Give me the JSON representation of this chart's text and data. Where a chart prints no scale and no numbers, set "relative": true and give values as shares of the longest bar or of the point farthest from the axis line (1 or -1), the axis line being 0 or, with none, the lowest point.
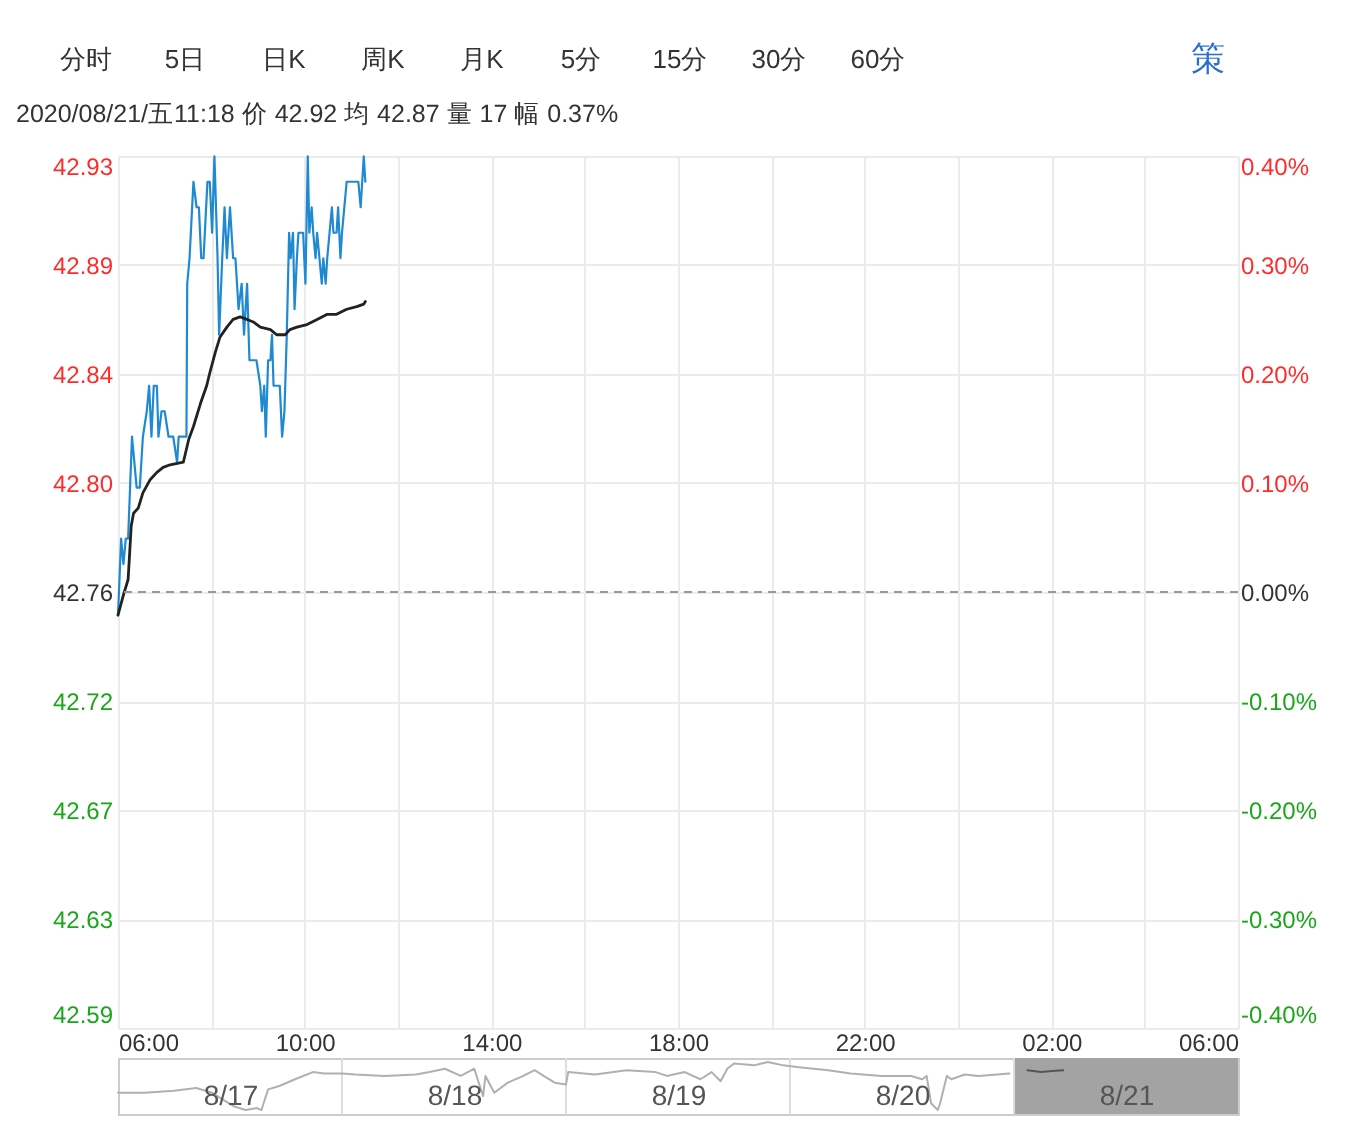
{
  "chart_data": [
    {
      "type": "line",
      "title": "2020/08/21/五11:18 价 42.92 均 42.87 量 17 幅 0.37%",
      "annotations": [
        "分时",
        "5日",
        "日K",
        "周K",
        "月K",
        "5分",
        "15分",
        "30分",
        "60分",
        "策"
      ],
      "xlim": [
        "2020-08-21T06:00",
        "2020-08-22T06:00"
      ],
      "xticks": [
        {
          "value": "2020-08-21T06:00",
          "label": "06:00"
        },
        {
          "value": "2020-08-21T08:00",
          "label": null
        },
        {
          "value": "2020-08-21T10:00",
          "label": "10:00"
        },
        {
          "value": "2020-08-21T12:00",
          "label": null
        },
        {
          "value": "2020-08-21T14:00",
          "label": "14:00"
        },
        {
          "value": "2020-08-21T16:00",
          "label": null
        },
        {
          "value": "2020-08-21T18:00",
          "label": "18:00"
        },
        {
          "value": "2020-08-21T20:00",
          "label": null
        },
        {
          "value": "2020-08-21T22:00",
          "label": "22:00"
        },
        {
          "value": "2020-08-22T00:00",
          "label": null
        },
        {
          "value": "2020-08-22T02:00",
          "label": "02:00"
        },
        {
          "value": "2020-08-22T04:00",
          "label": null
        },
        {
          "value": "2020-08-22T06:00",
          "label": "06:00"
        }
      ],
      "ylim": [
        42.5881,
        42.9301
      ],
      "yticks": [
        {
          "value": 42.9301,
          "label": "42.93"
        },
        {
          "value": 42.8874,
          "label": "42.89"
        },
        {
          "value": 42.8446,
          "label": "42.84"
        },
        {
          "value": 42.8019,
          "label": "42.80"
        },
        {
          "value": 42.7591,
          "label": "42.76"
        },
        {
          "value": 42.7163,
          "label": "42.72"
        },
        {
          "value": 42.6736,
          "label": "42.67"
        },
        {
          "value": 42.6308,
          "label": "42.63"
        },
        {
          "value": 42.5881,
          "label": "42.59"
        }
      ],
      "y2lim": [
        -0.4,
        0.4
      ],
      "y2ticks": [
        {
          "value": 0.4,
          "label": "0.40%"
        },
        {
          "value": 0.3,
          "label": "0.30%"
        },
        {
          "value": 0.2,
          "label": "0.20%"
        },
        {
          "value": 0.1,
          "label": "0.10%"
        },
        {
          "value": 0,
          "label": "0.00%"
        },
        {
          "value": -0.1,
          "label": "-0.10%"
        },
        {
          "value": -0.2,
          "label": "-0.20%"
        },
        {
          "value": -0.3,
          "label": "-0.30%"
        },
        {
          "value": -0.4,
          "label": "-0.40%"
        }
      ],
      "grid": true,
      "ref_lines": [
        {
          "axis": "y2",
          "value": 0,
          "color": "#999999",
          "line_style": "dashed"
        }
      ],
      "series": [
        {
          "color": "#1f8ad2",
          "x": [
            "2020-08-21T06:00",
            "2020-08-21T06:04",
            "2020-08-21T06:07",
            "2020-08-21T06:10",
            "2020-08-21T06:13",
            "2020-08-21T06:18",
            "2020-08-21T06:24",
            "2020-08-21T06:28",
            "2020-08-21T06:32",
            "2020-08-21T06:37",
            "2020-08-21T06:40",
            "2020-08-21T06:43",
            "2020-08-21T06:46",
            "2020-08-21T06:50",
            "2020-08-21T06:52",
            "2020-08-21T06:56",
            "2020-08-21T07:00",
            "2020-08-21T07:05",
            "2020-08-21T07:11",
            "2020-08-21T07:16",
            "2020-08-21T07:18",
            "2020-08-21T07:28",
            "2020-08-21T07:29",
            "2020-08-21T07:32",
            "2020-08-21T07:37",
            "2020-08-21T07:41",
            "2020-08-21T07:44",
            "2020-08-21T07:47",
            "2020-08-21T07:50",
            "2020-08-21T07:55",
            "2020-08-21T07:58",
            "2020-08-21T08:01",
            "2020-08-21T08:04",
            "2020-08-21T08:08",
            "2020-08-21T08:10",
            "2020-08-21T08:14",
            "2020-08-21T08:17",
            "2020-08-21T08:20",
            "2020-08-21T08:24",
            "2020-08-21T08:28",
            "2020-08-21T08:31",
            "2020-08-21T08:35",
            "2020-08-21T08:39",
            "2020-08-21T08:42",
            "2020-08-21T08:46",
            "2020-08-21T08:49",
            "2020-08-21T08:54",
            "2020-08-21T08:58",
            "2020-08-21T09:03",
            "2020-08-21T09:05",
            "2020-08-21T09:08",
            "2020-08-21T09:10",
            "2020-08-21T09:13",
            "2020-08-21T09:16",
            "2020-08-21T09:18",
            "2020-08-21T09:20",
            "2020-08-21T09:28",
            "2020-08-21T09:31",
            "2020-08-21T09:34",
            "2020-08-21T09:37",
            "2020-08-21T09:40",
            "2020-08-21T09:42",
            "2020-08-21T09:45",
            "2020-08-21T09:47",
            "2020-08-21T09:50",
            "2020-08-21T09:52",
            "2020-08-21T09:56",
            "2020-08-21T09:58",
            "2020-08-21T10:01",
            "2020-08-21T10:04",
            "2020-08-21T10:06",
            "2020-08-21T10:09",
            "2020-08-21T10:11",
            "2020-08-21T10:14",
            "2020-08-21T10:16",
            "2020-08-21T10:19",
            "2020-08-21T10:22",
            "2020-08-21T10:24",
            "2020-08-21T10:27",
            "2020-08-21T10:29",
            "2020-08-21T10:32",
            "2020-08-21T10:35",
            "2020-08-21T10:37",
            "2020-08-21T10:41",
            "2020-08-21T10:43",
            "2020-08-21T10:46",
            "2020-08-21T10:48",
            "2020-08-21T10:51",
            "2020-08-21T10:54",
            "2020-08-21T11:09",
            "2020-08-21T11:12",
            "2020-08-21T11:16",
            "2020-08-21T11:18"
          ],
          "values": [
            42.75,
            42.78,
            42.77,
            42.78,
            42.78,
            42.82,
            42.8,
            42.8,
            42.82,
            42.83,
            42.84,
            42.82,
            42.84,
            42.84,
            42.82,
            42.83,
            42.83,
            42.82,
            42.82,
            42.81,
            42.82,
            42.82,
            42.88,
            42.89,
            42.92,
            42.91,
            42.91,
            42.89,
            42.89,
            42.92,
            42.92,
            42.9,
            42.93,
            42.89,
            42.86,
            42.89,
            42.91,
            42.89,
            42.91,
            42.89,
            42.89,
            42.87,
            42.88,
            42.86,
            42.88,
            42.85,
            42.85,
            42.85,
            42.84,
            42.83,
            42.84,
            42.82,
            42.85,
            42.85,
            42.86,
            42.84,
            42.84,
            42.82,
            42.83,
            42.86,
            42.9,
            42.89,
            42.9,
            42.87,
            42.89,
            42.9,
            42.9,
            42.9,
            42.88,
            42.93,
            42.9,
            42.91,
            42.9,
            42.89,
            42.9,
            42.89,
            42.88,
            42.89,
            42.88,
            42.89,
            42.9,
            42.91,
            42.9,
            42.9,
            42.91,
            42.89,
            42.9,
            42.91,
            42.92,
            42.92,
            42.91,
            42.93,
            42.92
          ]
        },
        {
          "color": "#222222",
          "x": [
            "2020-08-21T06:00",
            "2020-08-21T06:07",
            "2020-08-21T06:13",
            "2020-08-21T06:17",
            "2020-08-21T06:20",
            "2020-08-21T06:26",
            "2020-08-21T06:32",
            "2020-08-21T06:41",
            "2020-08-21T06:50",
            "2020-08-21T06:58",
            "2020-08-21T07:07",
            "2020-08-21T07:24",
            "2020-08-21T07:31",
            "2020-08-21T07:37",
            "2020-08-21T07:46",
            "2020-08-21T07:54",
            "2020-08-21T07:58",
            "2020-08-21T08:05",
            "2020-08-21T08:11",
            "2020-08-21T08:20",
            "2020-08-21T08:28",
            "2020-08-21T08:37",
            "2020-08-21T08:46",
            "2020-08-21T08:54",
            "2020-08-21T09:03",
            "2020-08-21T09:16",
            "2020-08-21T09:24",
            "2020-08-21T09:35",
            "2020-08-21T09:41",
            "2020-08-21T09:50",
            "2020-08-21T10:03",
            "2020-08-21T10:16",
            "2020-08-21T10:29",
            "2020-08-21T10:41",
            "2020-08-21T10:54",
            "2020-08-21T11:07",
            "2020-08-21T11:16",
            "2020-08-21T11:18"
          ],
          "values": [
            42.75,
            42.758,
            42.764,
            42.785,
            42.79,
            42.792,
            42.798,
            42.803,
            42.806,
            42.808,
            42.809,
            42.81,
            42.819,
            42.824,
            42.833,
            42.84,
            42.845,
            42.853,
            42.859,
            42.863,
            42.866,
            42.867,
            42.866,
            42.865,
            42.863,
            42.862,
            42.86,
            42.86,
            42.862,
            42.863,
            42.864,
            42.866,
            42.868,
            42.868,
            42.87,
            42.871,
            42.872,
            42.873
          ]
        }
      ]
    },
    {
      "type": "line",
      "relative": true,
      "xlim": [
        "2020-08-17T06:00",
        "2020-08-22T06:00"
      ],
      "xticks": [
        {
          "value": "2020-08-17T18:00",
          "label": "8/17"
        },
        {
          "value": "2020-08-18T18:00",
          "label": "8/18"
        },
        {
          "value": "2020-08-19T18:00",
          "label": "8/19"
        },
        {
          "value": "2020-08-20T18:00",
          "label": "8/20"
        },
        {
          "value": "2020-08-21T18:00",
          "label": "8/21"
        }
      ],
      "bands": [
        {
          "axis": "x",
          "from": "2020-08-21T06:00",
          "to": "2020-08-22T06:00",
          "color": "#a3a3a3"
        }
      ],
      "ref_lines": [
        {
          "axis": "x",
          "value": "2020-08-18T06:00",
          "color": "#dddddd"
        },
        {
          "axis": "x",
          "value": "2020-08-19T06:00",
          "color": "#dddddd"
        },
        {
          "axis": "x",
          "value": "2020-08-20T06:00",
          "color": "#dddddd"
        },
        {
          "axis": "x",
          "value": "2020-08-21T06:00",
          "color": "#dddddd"
        }
      ],
      "series": [
        {
          "color": "#b0b0b0",
          "x": [
            "2020-08-17T06:00",
            "2020-08-17T08:53",
            "2020-08-17T12:00",
            "2020-08-17T14:24",
            "2020-08-17T16:05",
            "2020-08-17T17:17",
            "2020-08-17T18:29",
            "2020-08-17T19:41",
            "2020-08-17T20:53",
            "2020-08-17T21:22",
            "2020-08-17T22:05",
            "2020-08-17T23:17",
            "2020-08-18T00:58",
            "2020-08-18T02:53",
            "2020-08-18T04:05",
            "2020-08-18T06:00",
            "2020-08-18T07:26",
            "2020-08-18T10:34",
            "2020-08-18T13:55",
            "2020-08-18T15:22",
            "2020-08-18T17:02",
            "2020-08-18T18:43",
            "2020-08-18T20:10",
            "2020-08-18T21:07",
            "2020-08-18T21:22",
            "2020-08-18T22:19",
            "2020-08-18T23:46",
            "2020-08-19T01:26",
            "2020-08-19T02:38",
            "2020-08-19T03:36",
            "2020-08-19T04:48",
            "2020-08-19T06:00",
            "2020-08-19T06:14",
            "2020-08-19T09:07",
            "2020-08-19T12:29",
            "2020-08-19T15:36",
            "2020-08-19T16:48",
            "2020-08-19T18:43",
            "2020-08-19T20:24",
            "2020-08-19T21:36",
            "2020-08-19T22:34",
            "2020-08-19T23:17",
            "2020-08-20T00:00",
            "2020-08-20T02:10",
            "2020-08-20T03:36",
            "2020-08-20T05:17",
            "2020-08-20T06:58",
            "2020-08-20T10:05",
            "2020-08-20T12:29",
            "2020-08-20T15:50",
            "2020-08-20T18:58",
            "2020-08-20T20:10",
            "2020-08-20T20:38",
            "2020-08-20T21:07",
            "2020-08-20T21:50",
            "2020-08-20T22:05",
            "2020-08-20T22:48",
            "2020-08-20T23:17",
            "2020-08-21T00:43",
            "2020-08-21T02:10",
            "2020-08-21T05:31"
          ],
          "values": [
            0.36,
            0.36,
            0.4,
            0.46,
            0.36,
            0.21,
            0.07,
            0.0,
            0.04,
            0.0,
            0.43,
            0.5,
            0.64,
            0.79,
            0.76,
            0.76,
            0.74,
            0.71,
            0.74,
            0.79,
            0.86,
            0.71,
            0.86,
            0.29,
            0.71,
            0.36,
            0.57,
            0.71,
            0.83,
            0.71,
            0.57,
            0.53,
            0.79,
            0.74,
            0.83,
            0.79,
            0.71,
            0.79,
            0.64,
            0.79,
            0.6,
            0.86,
            0.97,
            0.93,
            1.0,
            0.93,
            0.89,
            0.83,
            0.76,
            0.71,
            0.71,
            0.64,
            0.71,
            0.14,
            0.0,
            0.14,
            0.71,
            0.64,
            0.74,
            0.71,
            0.76
          ]
        },
        {
          "color": "#555555",
          "x": [
            "2020-08-21T07:26",
            "2020-08-21T08:53",
            "2020-08-21T10:05",
            "2020-08-21T11:17"
          ],
          "values": [
            0.83,
            0.79,
            0.81,
            0.83
          ]
        }
      ]
    }
  ]
}
